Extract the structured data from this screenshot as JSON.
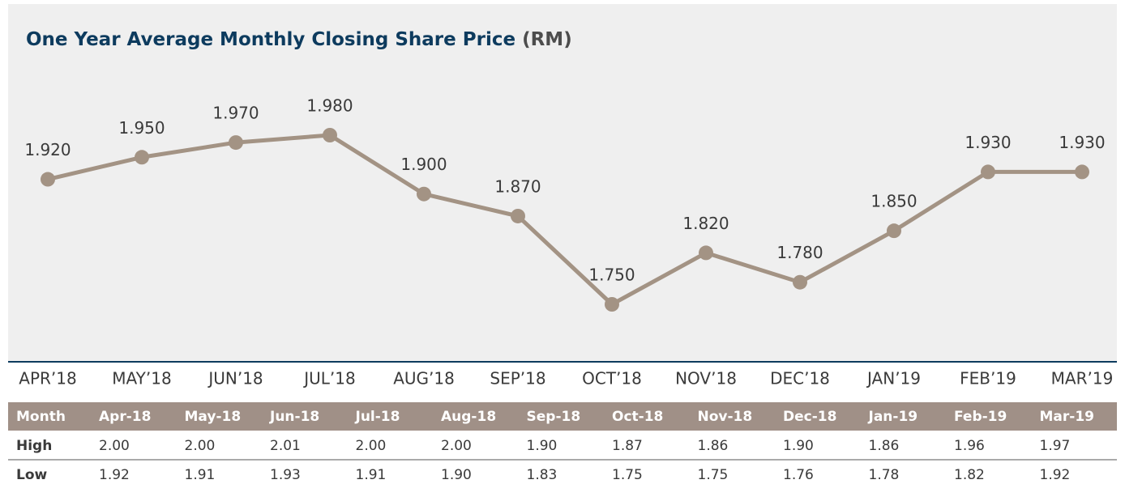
{
  "chart_data": {
    "type": "line",
    "title": "One Year Average Monthly Closing Share Price",
    "unit": "(RM)",
    "categories": [
      "APR’18",
      "MAY’18",
      "JUN’18",
      "JUL’18",
      "AUG’18",
      "SEP’18",
      "OCT’18",
      "NOV’18",
      "DEC’18",
      "JAN’19",
      "FEB’19",
      "MAR’19"
    ],
    "values": [
      1.92,
      1.95,
      1.97,
      1.98,
      1.9,
      1.87,
      1.75,
      1.82,
      1.78,
      1.85,
      1.93,
      1.93
    ],
    "value_labels": [
      "1.920",
      "1.950",
      "1.970",
      "1.980",
      "1.900",
      "1.870",
      "1.750",
      "1.820",
      "1.780",
      "1.850",
      "1.930",
      "1.930"
    ],
    "color": "#a39384"
  },
  "table": {
    "header": [
      "Month",
      "Apr-18",
      "May-18",
      "Jun-18",
      "Jul-18",
      "Aug-18",
      "Sep-18",
      "Oct-18",
      "Nov-18",
      "Dec-18",
      "Jan-19",
      "Feb-19",
      "Mar-19"
    ],
    "rows": [
      [
        "High",
        "2.00",
        "2.00",
        "2.01",
        "2.00",
        "2.00",
        "1.90",
        "1.87",
        "1.86",
        "1.90",
        "1.86",
        "1.96",
        "1.97"
      ],
      [
        "Low",
        "1.92",
        "1.91",
        "1.93",
        "1.91",
        "1.90",
        "1.83",
        "1.75",
        "1.75",
        "1.76",
        "1.78",
        "1.82",
        "1.92"
      ]
    ]
  }
}
